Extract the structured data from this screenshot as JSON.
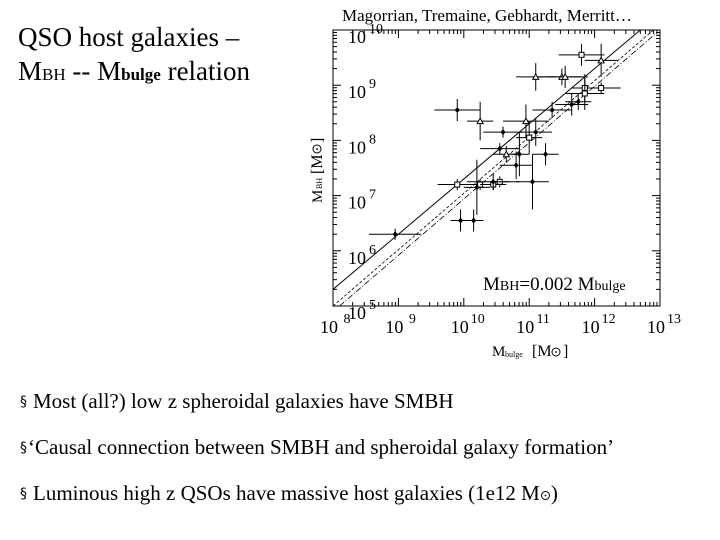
{
  "slide": {
    "title_line1": "QSO host galaxies –",
    "title_line2_M1": "M",
    "title_line2_sub1": "BH",
    "title_line2_mid": " -- M",
    "title_line2_sub2": "bulge",
    "title_line2_end": " relation"
  },
  "credit": "Magorrian, Tremaine, Gebhardt, Merritt…",
  "relation": {
    "m1": "M",
    "sub1": "BH",
    "mid": "=0.002 M",
    "sub2": "bulge"
  },
  "bullets": [
    {
      "marker": "§",
      "text": "Most (all?) low z spheroidal galaxies have SMBH"
    },
    {
      "marker": "§",
      "text": "‘Causal connection between SMBH and spheroidal galaxy formation’"
    },
    {
      "marker": "§",
      "text": "Luminous high z QSOs have massive host galaxies (1e12 M",
      "suffix": ")"
    }
  ],
  "chart_data": {
    "type": "scatter",
    "log_scale": true,
    "xlim_log10": [
      8,
      13
    ],
    "ylim_log10": [
      5,
      10
    ],
    "x_ticks": [
      {
        "base": "10",
        "exp": "8"
      },
      {
        "base": "10",
        "exp": "9"
      },
      {
        "base": "10",
        "exp": "10"
      },
      {
        "base": "10",
        "exp": "11"
      },
      {
        "base": "10",
        "exp": "12"
      },
      {
        "base": "10",
        "exp": "13"
      }
    ],
    "y_ticks": [
      {
        "base": "10",
        "exp": "5"
      },
      {
        "base": "10",
        "exp": "6"
      },
      {
        "base": "10",
        "exp": "7"
      },
      {
        "base": "10",
        "exp": "8"
      },
      {
        "base": "10",
        "exp": "9"
      },
      {
        "base": "10",
        "exp": "10"
      }
    ],
    "xlabel": {
      "main": "M",
      "sub": "bulge",
      "unit_open": "[M",
      "unit_close": "]"
    },
    "ylabel": {
      "main": "M",
      "sub": "BH",
      "unit_open": "[M",
      "unit_close": "]"
    },
    "relation_line": {
      "coefficient": 0.002
    },
    "points": [
      {
        "lx": 11.8,
        "ly": 9.55,
        "xerr": 0.35,
        "yerr": 0.2,
        "marker": "square"
      },
      {
        "lx": 12.1,
        "ly": 9.45,
        "xerr": 0.25,
        "yerr": 0.3,
        "marker": "triangle"
      },
      {
        "lx": 11.5,
        "ly": 9.15,
        "xerr": 0.4,
        "yerr": 0.15,
        "marker": "triangle"
      },
      {
        "lx": 11.1,
        "ly": 9.15,
        "xerr": 0.3,
        "yerr": 0.25,
        "marker": "triangle"
      },
      {
        "lx": 11.55,
        "ly": 9.15,
        "xerr": 0.25,
        "yerr": 0.2,
        "marker": "triangle"
      },
      {
        "lx": 12.1,
        "ly": 8.95,
        "xerr": 0.3,
        "yerr": 0.1,
        "marker": "square"
      },
      {
        "lx": 11.85,
        "ly": 8.95,
        "xerr": 0.2,
        "yerr": 0.25,
        "marker": "square"
      },
      {
        "lx": 11.85,
        "ly": 8.85,
        "xerr": 0.3,
        "yerr": 0.3,
        "marker": "square"
      },
      {
        "lx": 11.75,
        "ly": 8.7,
        "xerr": 0.2,
        "yerr": 0.15,
        "marker": "diamond"
      },
      {
        "lx": 11.65,
        "ly": 8.65,
        "xerr": 0.25,
        "yerr": 0.2,
        "marker": "circle"
      },
      {
        "lx": 11.35,
        "ly": 8.55,
        "xerr": 0.3,
        "yerr": 0.15,
        "marker": "circle"
      },
      {
        "lx": 9.9,
        "ly": 8.55,
        "xerr": 0.35,
        "yerr": 0.2,
        "marker": "circle"
      },
      {
        "lx": 10.95,
        "ly": 8.35,
        "xerr": 0.35,
        "yerr": 0.3,
        "marker": "triangle"
      },
      {
        "lx": 10.25,
        "ly": 8.35,
        "xerr": 0.2,
        "yerr": 0.35,
        "marker": "triangle"
      },
      {
        "lx": 10.6,
        "ly": 8.15,
        "xerr": 0.3,
        "yerr": 0.1,
        "marker": "diamond"
      },
      {
        "lx": 11.1,
        "ly": 8.15,
        "xerr": 0.25,
        "yerr": 0.25,
        "marker": "circle"
      },
      {
        "lx": 11.0,
        "ly": 8.05,
        "xerr": 0.2,
        "yerr": 0.3,
        "marker": "square"
      },
      {
        "lx": 10.55,
        "ly": 7.85,
        "xerr": 0.3,
        "yerr": 0.1,
        "marker": "diamond"
      },
      {
        "lx": 10.85,
        "ly": 7.75,
        "xerr": 0.15,
        "yerr": 0.4,
        "marker": "diamond"
      },
      {
        "lx": 10.65,
        "ly": 7.75,
        "xerr": 0.2,
        "yerr": 0.15,
        "marker": "triangle"
      },
      {
        "lx": 11.25,
        "ly": 7.75,
        "xerr": 0.2,
        "yerr": 0.2,
        "marker": "diamond"
      },
      {
        "lx": 10.8,
        "ly": 7.55,
        "xerr": 0.25,
        "yerr": 0.25,
        "marker": "diamond"
      },
      {
        "lx": 9.9,
        "ly": 7.2,
        "xerr": 0.3,
        "yerr": 0.1,
        "marker": "square"
      },
      {
        "lx": 10.25,
        "ly": 7.2,
        "xerr": 0.3,
        "yerr": 0.1,
        "marker": "square"
      },
      {
        "lx": 10.45,
        "ly": 7.2,
        "xerr": 0.2,
        "yerr": 0.1,
        "marker": "square"
      },
      {
        "lx": 10.55,
        "ly": 7.25,
        "xerr": 0.15,
        "yerr": 0.1,
        "marker": "square"
      },
      {
        "lx": 10.45,
        "ly": 7.25,
        "xerr": 0.4,
        "yerr": 0.15,
        "marker": "diamond"
      },
      {
        "lx": 10.2,
        "ly": 7.15,
        "xerr": 0.2,
        "yerr": 0.5,
        "marker": "diamond"
      },
      {
        "lx": 11.05,
        "ly": 7.25,
        "xerr": 0.25,
        "yerr": 0.5,
        "marker": "diamond"
      },
      {
        "lx": 9.95,
        "ly": 6.55,
        "xerr": 0.15,
        "yerr": 0.2,
        "marker": "diamond"
      },
      {
        "lx": 10.15,
        "ly": 6.55,
        "xerr": 0.15,
        "yerr": 0.2,
        "marker": "diamond"
      },
      {
        "lx": 8.95,
        "ly": 6.3,
        "xerr": 0.4,
        "yerr": 0.1,
        "marker": "diamond"
      }
    ]
  }
}
